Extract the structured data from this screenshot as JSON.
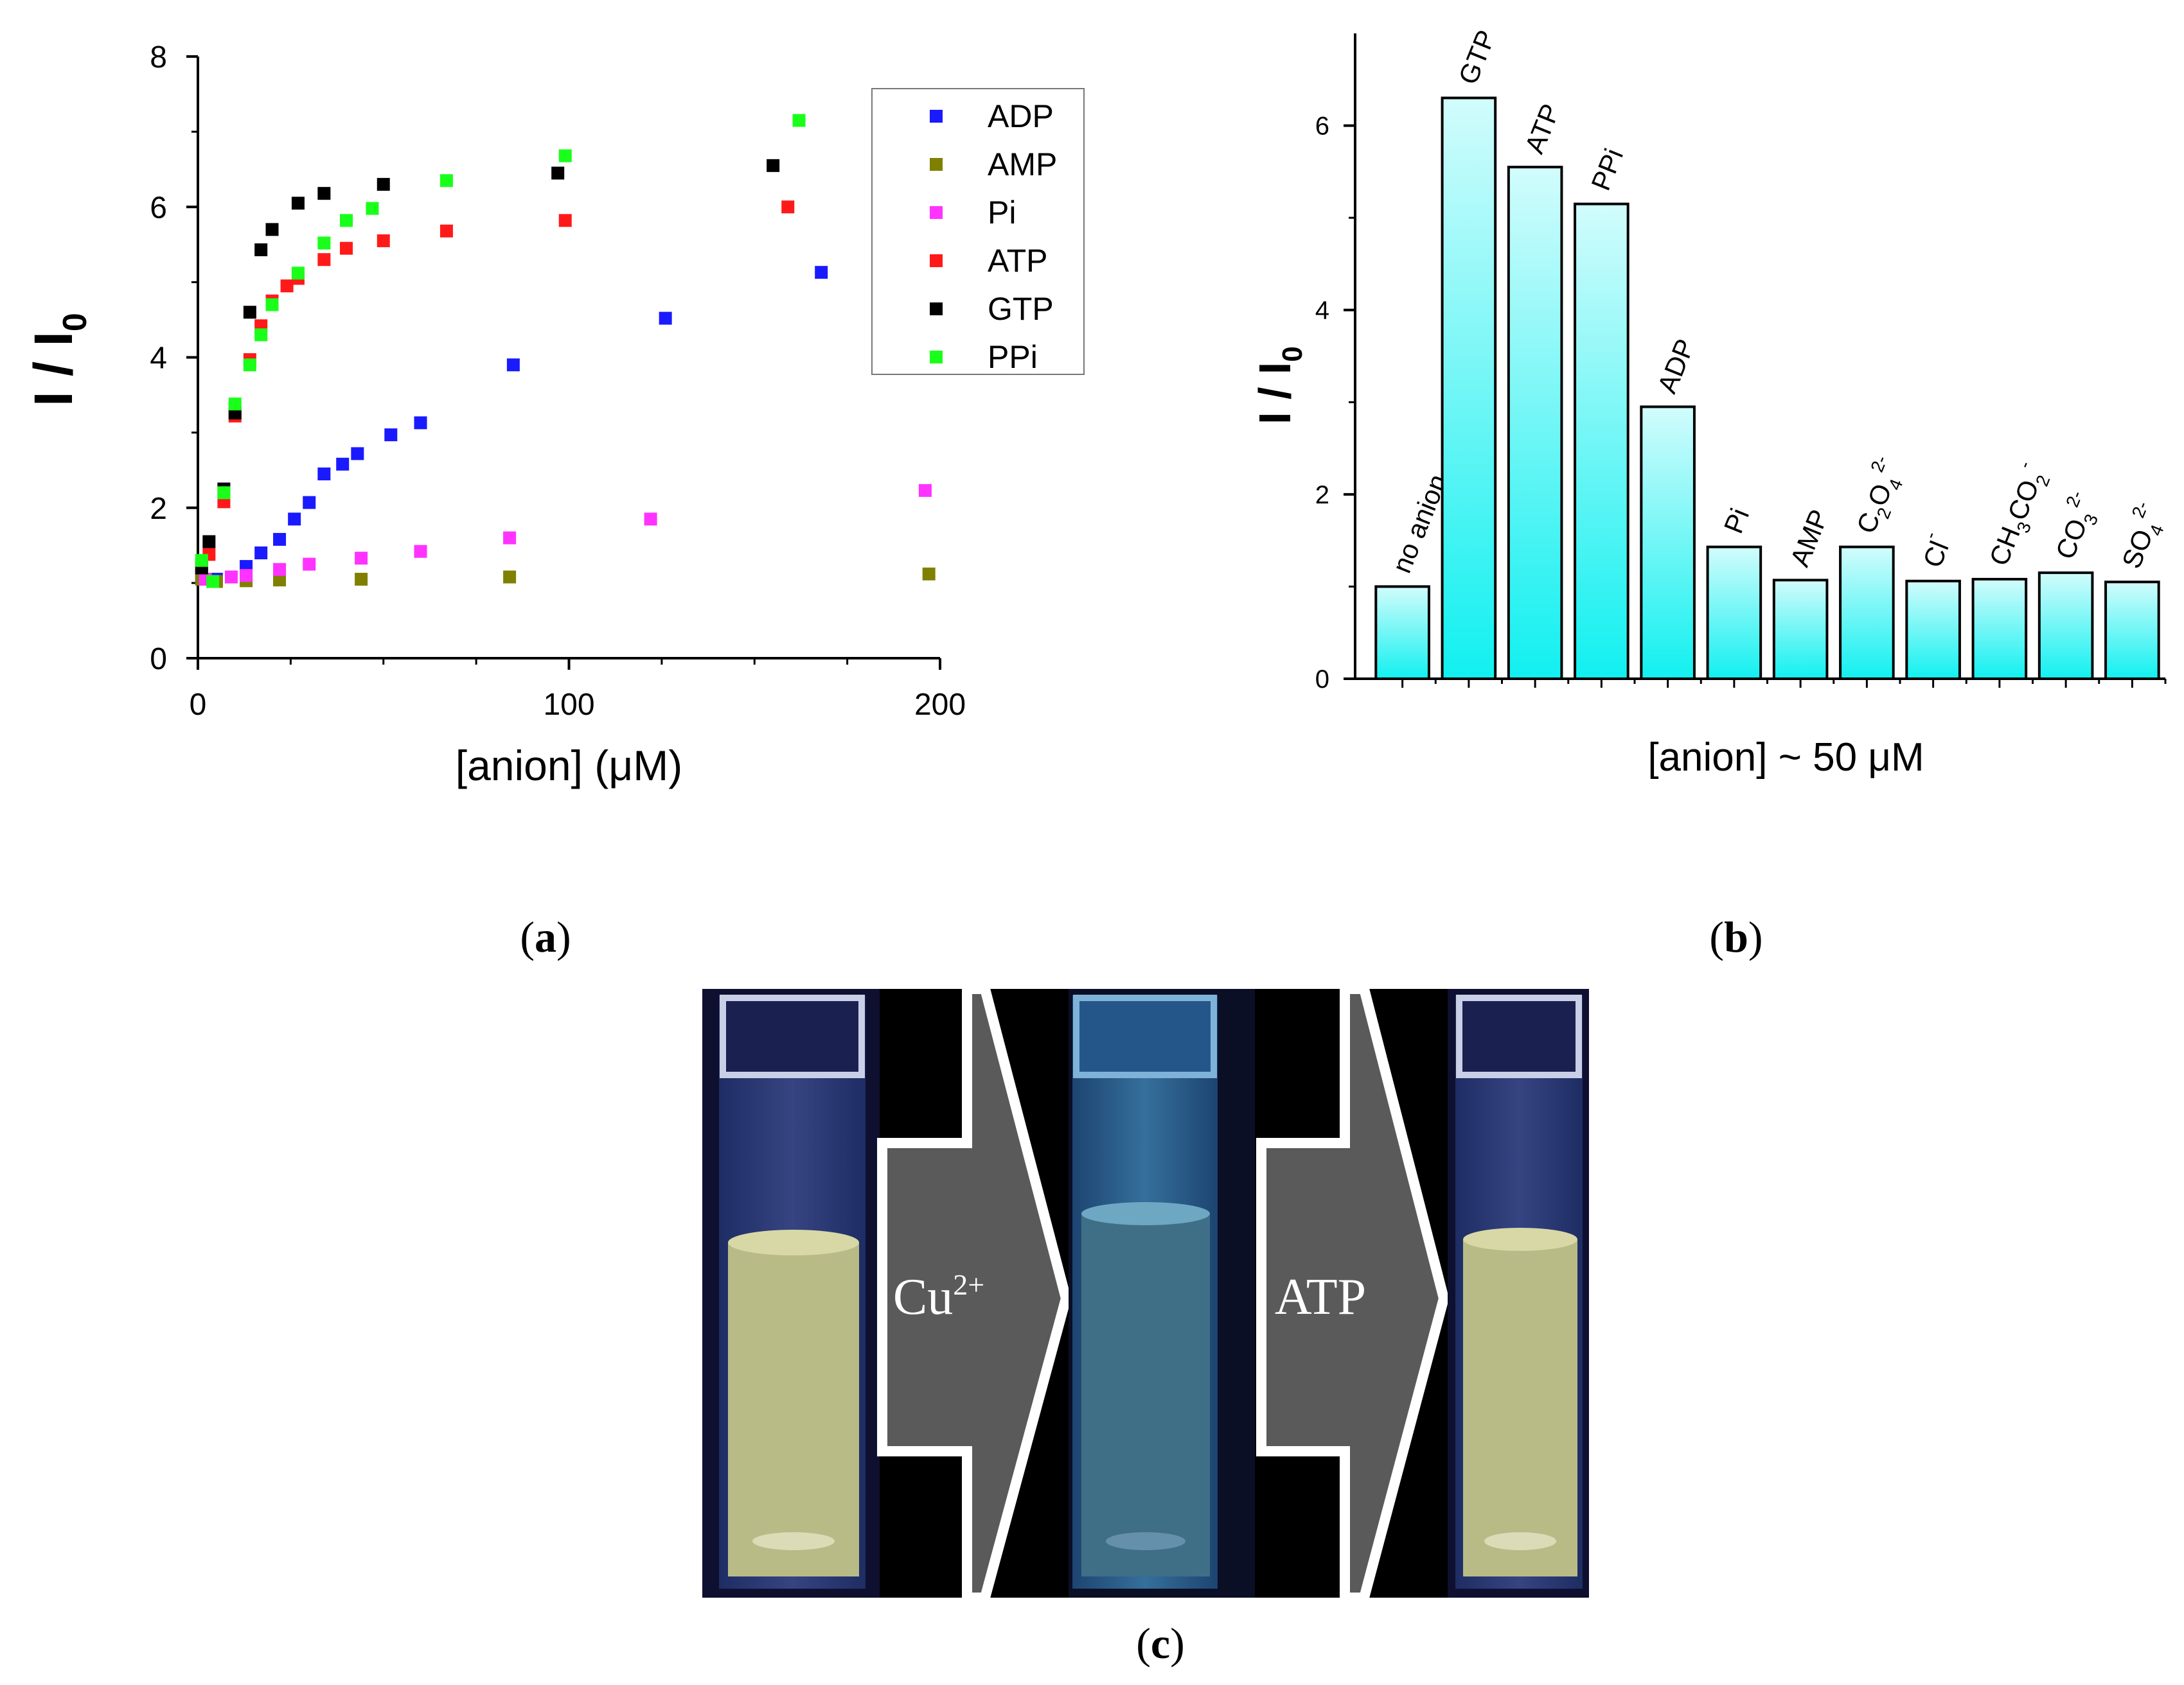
{
  "chart_data": [
    {
      "type": "scatter",
      "panel": "a",
      "xlabel": "[anion] (μM)",
      "ylabel": "I / I",
      "ylabel_sub": "0",
      "xlim": [
        0,
        200
      ],
      "ylim": [
        0,
        8
      ],
      "xticks": [
        0,
        100,
        200
      ],
      "yticks": [
        0,
        2,
        4,
        6,
        8
      ],
      "legend_position": "top-right",
      "series": [
        {
          "name": "ADP",
          "color": "#1a1aff",
          "x": [
            1,
            5,
            13,
            17,
            22,
            26,
            30,
            34,
            39,
            43,
            52,
            60,
            85,
            126,
            168
          ],
          "y": [
            1.1,
            1.05,
            1.22,
            1.4,
            1.58,
            1.85,
            2.07,
            2.45,
            2.58,
            2.72,
            2.97,
            3.13,
            3.9,
            4.52,
            5.13
          ]
        },
        {
          "name": "AMP",
          "color": "#808000",
          "x": [
            1,
            5,
            13,
            22,
            44,
            84,
            197
          ],
          "y": [
            1.05,
            1.02,
            1.03,
            1.04,
            1.05,
            1.08,
            1.12
          ]
        },
        {
          "name": "Pi",
          "color": "#ff33ff",
          "x": [
            2,
            9,
            13,
            22,
            30,
            44,
            60,
            84,
            122,
            196
          ],
          "y": [
            1.05,
            1.08,
            1.1,
            1.18,
            1.25,
            1.33,
            1.42,
            1.6,
            1.85,
            2.23
          ]
        },
        {
          "name": "ATP",
          "color": "#ff1a1a",
          "x": [
            1,
            3,
            7,
            10,
            14,
            17,
            20,
            24,
            27,
            34,
            40,
            50,
            67,
            99,
            159
          ],
          "y": [
            1.25,
            1.38,
            2.08,
            3.22,
            3.97,
            4.42,
            4.75,
            4.95,
            5.05,
            5.3,
            5.45,
            5.55,
            5.68,
            5.82,
            6.0
          ]
        },
        {
          "name": "GTP",
          "color": "#000000",
          "x": [
            1,
            3,
            7,
            10,
            14,
            17,
            20,
            27,
            34,
            50,
            97,
            155
          ],
          "y": [
            1.2,
            1.55,
            2.25,
            3.26,
            4.6,
            5.43,
            5.7,
            6.05,
            6.18,
            6.3,
            6.45,
            6.55
          ]
        },
        {
          "name": "PPi",
          "color": "#1aff1a",
          "x": [
            1,
            4,
            7,
            10,
            14,
            17,
            20,
            27,
            34,
            40,
            47,
            67,
            99,
            162
          ],
          "y": [
            1.3,
            1.02,
            2.2,
            3.38,
            3.9,
            4.3,
            4.7,
            5.12,
            5.52,
            5.82,
            5.98,
            6.35,
            6.68,
            7.15
          ]
        }
      ]
    },
    {
      "type": "bar",
      "panel": "b",
      "xlabel": "[anion] ~ 50 μM",
      "ylabel": "I / I",
      "ylabel_sub": "0",
      "ylim": [
        0,
        7
      ],
      "yticks": [
        0,
        2,
        4,
        6
      ],
      "categories": [
        {
          "label": "no anion",
          "value": 1.0
        },
        {
          "label": "GTP",
          "value": 6.3
        },
        {
          "label": "ATP",
          "value": 5.55
        },
        {
          "label": "PPi",
          "value": 5.15
        },
        {
          "label": "ADP",
          "value": 2.95
        },
        {
          "label": "Pi",
          "value": 1.43
        },
        {
          "label": "AMP",
          "value": 1.07
        },
        {
          "label": "C2O4 2-",
          "value": 1.43,
          "main": "C",
          "sub1": "2",
          "mid": "O",
          "sub2": "4",
          "sup": "2-"
        },
        {
          "label": "Cl-",
          "value": 1.06,
          "main": "Cl",
          "sup": "-"
        },
        {
          "label": "CH3CO2 -",
          "value": 1.08,
          "main": "CH",
          "sub1": "3",
          "mid": "CO",
          "sub2": "2",
          "sup": "-"
        },
        {
          "label": "CO3 2-",
          "value": 1.15,
          "main": "CO",
          "sub1": "3",
          "sup": "2-"
        },
        {
          "label": "SO4 2-",
          "value": 1.05,
          "main": "SO",
          "sub1": "4",
          "sup": "2-"
        }
      ],
      "bar_gradient": [
        "#d2fcfc",
        "#12f0f0"
      ]
    }
  ],
  "panel_labels": {
    "a": "a",
    "b": "b",
    "c": "c"
  },
  "photo": {
    "arrow1_label": "Cu",
    "arrow1_sup": "2+",
    "arrow2_label": "ATP",
    "cuvette_colors": [
      "#b9bb86",
      "#3f6f86",
      "#b9bb86"
    ]
  }
}
